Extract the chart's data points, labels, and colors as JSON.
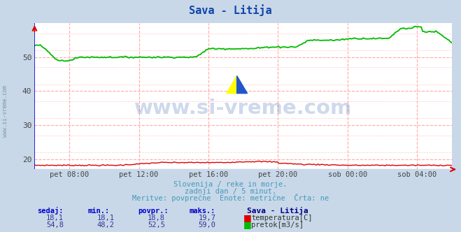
{
  "title": "Sava - Litija",
  "title_color": "#1144aa",
  "bg_color": "#c8d8e8",
  "plot_bg_color": "#ffffff",
  "grid_color_major": "#ffaaaa",
  "grid_color_minor": "#ffcccc",
  "watermark": "www.si-vreme.com",
  "watermark_color": "#2255aa",
  "xlabel_ticks": [
    "pet 08:00",
    "pet 12:00",
    "pet 16:00",
    "pet 20:00",
    "sob 00:00",
    "sob 04:00"
  ],
  "tick_frac": [
    0.0833,
    0.25,
    0.4167,
    0.5833,
    0.75,
    0.9167
  ],
  "ylim": [
    17.0,
    60.0
  ],
  "yticks": [
    20,
    30,
    40,
    50
  ],
  "left_label": "www.si-vreme.com",
  "subtitle_lines": [
    "Slovenija / reke in morje.",
    "zadnji dan / 5 minut.",
    "Meritve: povprečne  Enote: metrične  Črta: ne"
  ],
  "subtitle_color": "#4499bb",
  "table_headers": [
    "sedaj:",
    "min.:",
    "povpr.:",
    "maks.:"
  ],
  "table_header_color": "#0000cc",
  "table_row1": [
    "18,1",
    "18,1",
    "18,8",
    "19,7"
  ],
  "table_row2": [
    "54,8",
    "48,2",
    "52,5",
    "59,0"
  ],
  "table_val_color": "#333399",
  "legend_title": "Sava - Litija",
  "legend_temp": "temperatura[C]",
  "legend_flow": "pretok[m3/s]",
  "temp_color": "#dd0000",
  "flow_color": "#00bb00",
  "axis_line_color": "#0000cc",
  "arrow_color": "#dd0000",
  "n_points": 288
}
